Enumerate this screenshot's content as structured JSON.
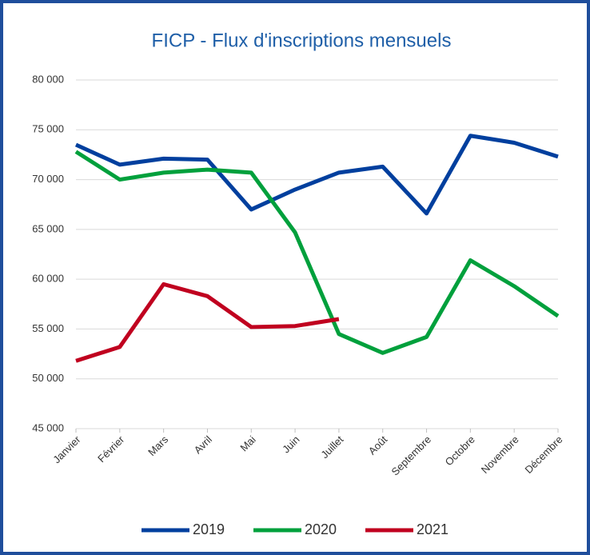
{
  "chart_data": {
    "type": "line",
    "title": "FICP - Flux d'inscriptions mensuels",
    "categories": [
      "Janvier",
      "Février",
      "Mars",
      "Avril",
      "Mai",
      "Juin",
      "Juillet",
      "Août",
      "Septembre",
      "Octobre",
      "Novembre",
      "Décembre"
    ],
    "series": [
      {
        "name": "2019",
        "color": "#003f9e",
        "values": [
          73500,
          71500,
          72100,
          72000,
          67000,
          69000,
          70700,
          71300,
          66600,
          74400,
          73700,
          72300
        ]
      },
      {
        "name": "2020",
        "color": "#00a03c",
        "values": [
          72800,
          70000,
          70700,
          71000,
          70700,
          64700,
          54500,
          52600,
          54200,
          61900,
          59300,
          56300
        ]
      },
      {
        "name": "2021",
        "color": "#c0001f",
        "values": [
          51800,
          53200,
          59500,
          58300,
          55200,
          55300,
          56000,
          null,
          null,
          null,
          null,
          null
        ]
      }
    ],
    "ylim": [
      45000,
      80000
    ],
    "yticks": [
      {
        "value": 45000,
        "label": "45 000"
      },
      {
        "value": 50000,
        "label": "50 000"
      },
      {
        "value": 55000,
        "label": "55 000"
      },
      {
        "value": 60000,
        "label": "60 000"
      },
      {
        "value": 65000,
        "label": "65 000"
      },
      {
        "value": 70000,
        "label": "70 000"
      },
      {
        "value": 75000,
        "label": "75 000"
      },
      {
        "value": 80000,
        "label": "80 000"
      }
    ],
    "grid": true,
    "legend": "bottom"
  }
}
